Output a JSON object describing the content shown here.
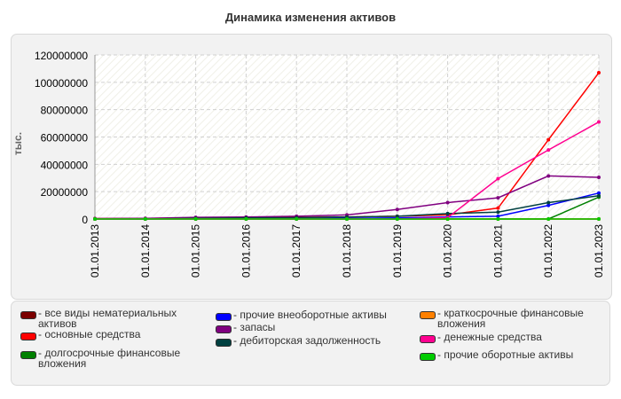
{
  "chart_data": {
    "type": "line",
    "title": "Динамика изменения активов",
    "ylabel": "тыс.",
    "xlabel": "",
    "ylim": [
      0,
      120000000
    ],
    "yticks": [
      0,
      20000000,
      40000000,
      60000000,
      80000000,
      100000000,
      120000000
    ],
    "categories": [
      "01.01.2013",
      "01.01.2014",
      "01.01.2015",
      "01.01.2016",
      "01.01.2017",
      "01.01.2018",
      "01.01.2019",
      "01.01.2020",
      "01.01.2021",
      "01.01.2022",
      "01.01.2023"
    ],
    "grid": true,
    "legend_position": "bottom",
    "series": [
      {
        "name": "все виды нематериальных активов",
        "color": "#7b0000",
        "values": [
          0,
          0,
          0,
          0,
          0,
          0,
          0,
          0,
          0,
          0,
          0
        ]
      },
      {
        "name": "основные средства",
        "color": "#ff0000",
        "values": [
          300000,
          400000,
          900000,
          1000000,
          1200000,
          1500000,
          2000000,
          3000000,
          8000000,
          58000000,
          107000000
        ]
      },
      {
        "name": "долгосрочные финансовые вложения",
        "color": "#008000",
        "values": [
          0,
          0,
          0,
          0,
          0,
          0,
          0,
          0,
          0,
          0,
          16000000
        ]
      },
      {
        "name": "прочие внеоборотные активы",
        "color": "#0000ff",
        "values": [
          0,
          0,
          200000,
          300000,
          300000,
          500000,
          800000,
          1500000,
          2000000,
          10000000,
          19000000
        ]
      },
      {
        "name": "запасы",
        "color": "#800080",
        "values": [
          300000,
          500000,
          1200000,
          1500000,
          2000000,
          3000000,
          7000000,
          12000000,
          15500000,
          31500000,
          30500000
        ]
      },
      {
        "name": "дебиторская задолженность",
        "color": "#004040",
        "values": [
          0,
          0,
          500000,
          800000,
          1000000,
          1500000,
          2000000,
          4000000,
          5000000,
          12000000,
          17000000
        ]
      },
      {
        "name": "краткосрочные финансовые вложения",
        "color": "#ff8000",
        "values": [
          0,
          0,
          0,
          0,
          0,
          0,
          0,
          0,
          0,
          0,
          0
        ]
      },
      {
        "name": "денежные средства",
        "color": "#ff0090",
        "values": [
          0,
          0,
          0,
          0,
          0,
          0,
          0,
          1000000,
          29500000,
          50500000,
          71000000
        ]
      },
      {
        "name": "прочие оборотные активы",
        "color": "#00cc00",
        "values": [
          0,
          0,
          0,
          0,
          0,
          0,
          0,
          0,
          0,
          0,
          0
        ]
      }
    ]
  }
}
